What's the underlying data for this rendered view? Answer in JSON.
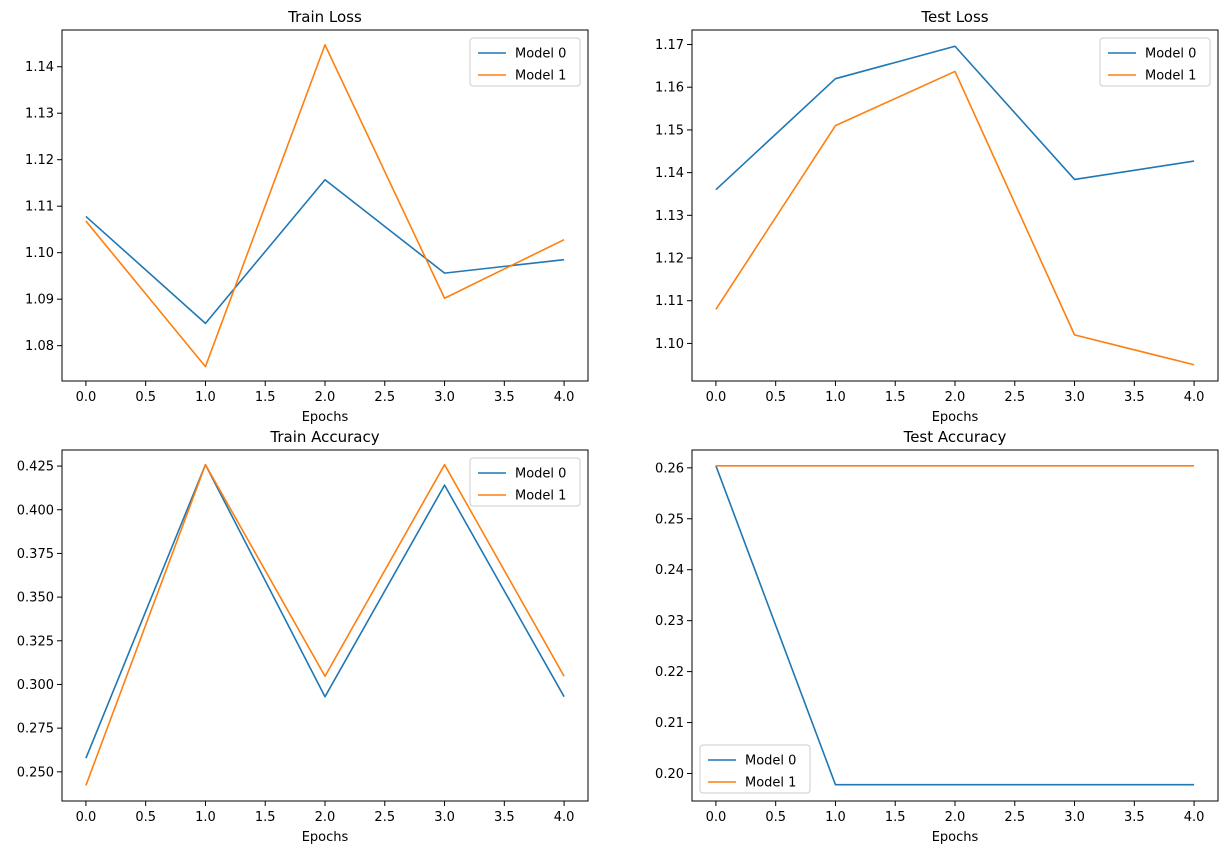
{
  "colors": {
    "series_0": "#1f77b4",
    "series_1": "#ff7f0e",
    "axes": "#000000",
    "legend_border": "#cccccc"
  },
  "chart_data": [
    {
      "type": "line",
      "title": "Train Loss",
      "xlabel": "Epochs",
      "ylabel": "",
      "x": [
        0,
        1,
        2,
        3,
        4
      ],
      "xlim": [
        -0.2,
        4.2
      ],
      "ylim": [
        1.0724,
        1.1479
      ],
      "xticks": [
        0.0,
        0.5,
        1.0,
        1.5,
        2.0,
        2.5,
        3.0,
        3.5,
        4.0
      ],
      "xtick_labels": [
        "0.0",
        "0.5",
        "1.0",
        "1.5",
        "2.0",
        "2.5",
        "3.0",
        "3.5",
        "4.0"
      ],
      "yticks": [
        1.08,
        1.09,
        1.1,
        1.11,
        1.12,
        1.13,
        1.14
      ],
      "ytick_labels": [
        "1.08",
        "1.09",
        "1.10",
        "1.11",
        "1.12",
        "1.13",
        "1.14"
      ],
      "legend": "top-right",
      "series": [
        {
          "name": "Model 0",
          "values": [
            1.1078,
            1.0848,
            1.1157,
            1.0956,
            1.0985
          ]
        },
        {
          "name": "Model 1",
          "values": [
            1.1068,
            1.0755,
            1.1447,
            1.0902,
            1.1028
          ]
        }
      ]
    },
    {
      "type": "line",
      "title": "Test Loss",
      "xlabel": "Epochs",
      "ylabel": "",
      "x": [
        0,
        1,
        2,
        3,
        4
      ],
      "xlim": [
        -0.2,
        4.2
      ],
      "ylim": [
        1.0912,
        1.1734
      ],
      "xticks": [
        0.0,
        0.5,
        1.0,
        1.5,
        2.0,
        2.5,
        3.0,
        3.5,
        4.0
      ],
      "xtick_labels": [
        "0.0",
        "0.5",
        "1.0",
        "1.5",
        "2.0",
        "2.5",
        "3.0",
        "3.5",
        "4.0"
      ],
      "yticks": [
        1.1,
        1.11,
        1.12,
        1.13,
        1.14,
        1.15,
        1.16,
        1.17
      ],
      "ytick_labels": [
        "1.10",
        "1.11",
        "1.12",
        "1.13",
        "1.14",
        "1.15",
        "1.16",
        "1.17"
      ],
      "legend": "top-right",
      "series": [
        {
          "name": "Model 0",
          "values": [
            1.136,
            1.162,
            1.1696,
            1.1384,
            1.1427
          ]
        },
        {
          "name": "Model 1",
          "values": [
            1.108,
            1.151,
            1.1637,
            1.102,
            1.095
          ]
        }
      ]
    },
    {
      "type": "line",
      "title": "Train Accuracy",
      "xlabel": "Epochs",
      "ylabel": "",
      "x": [
        0,
        1,
        2,
        3,
        4
      ],
      "xlim": [
        -0.2,
        4.2
      ],
      "ylim": [
        0.2333,
        0.4342
      ],
      "xticks": [
        0.0,
        0.5,
        1.0,
        1.5,
        2.0,
        2.5,
        3.0,
        3.5,
        4.0
      ],
      "xtick_labels": [
        "0.0",
        "0.5",
        "1.0",
        "1.5",
        "2.0",
        "2.5",
        "3.0",
        "3.5",
        "4.0"
      ],
      "yticks": [
        0.25,
        0.275,
        0.3,
        0.325,
        0.35,
        0.375,
        0.4,
        0.425
      ],
      "ytick_labels": [
        "0.250",
        "0.275",
        "0.300",
        "0.325",
        "0.350",
        "0.375",
        "0.400",
        "0.425"
      ],
      "legend": "top-right",
      "series": [
        {
          "name": "Model 0",
          "values": [
            0.2578,
            0.4258,
            0.293,
            0.4141,
            0.293
          ]
        },
        {
          "name": "Model 1",
          "values": [
            0.2422,
            0.4258,
            0.3047,
            0.4258,
            0.3047
          ]
        }
      ]
    },
    {
      "type": "line",
      "title": "Test Accuracy",
      "xlabel": "Epochs",
      "ylabel": "",
      "x": [
        0,
        1,
        2,
        3,
        4
      ],
      "xlim": [
        -0.2,
        4.2
      ],
      "ylim": [
        0.1946,
        0.2635
      ],
      "xticks": [
        0.0,
        0.5,
        1.0,
        1.5,
        2.0,
        2.5,
        3.0,
        3.5,
        4.0
      ],
      "xtick_labels": [
        "0.0",
        "0.5",
        "1.0",
        "1.5",
        "2.0",
        "2.5",
        "3.0",
        "3.5",
        "4.0"
      ],
      "yticks": [
        0.2,
        0.21,
        0.22,
        0.23,
        0.24,
        0.25,
        0.26
      ],
      "ytick_labels": [
        "0.20",
        "0.21",
        "0.22",
        "0.23",
        "0.24",
        "0.25",
        "0.26"
      ],
      "legend": "bottom-left",
      "series": [
        {
          "name": "Model 0",
          "values": [
            0.2604,
            0.1978,
            0.1978,
            0.1978,
            0.1978
          ]
        },
        {
          "name": "Model 1",
          "values": [
            0.2604,
            0.2604,
            0.2604,
            0.2604,
            0.2604
          ]
        }
      ]
    }
  ]
}
